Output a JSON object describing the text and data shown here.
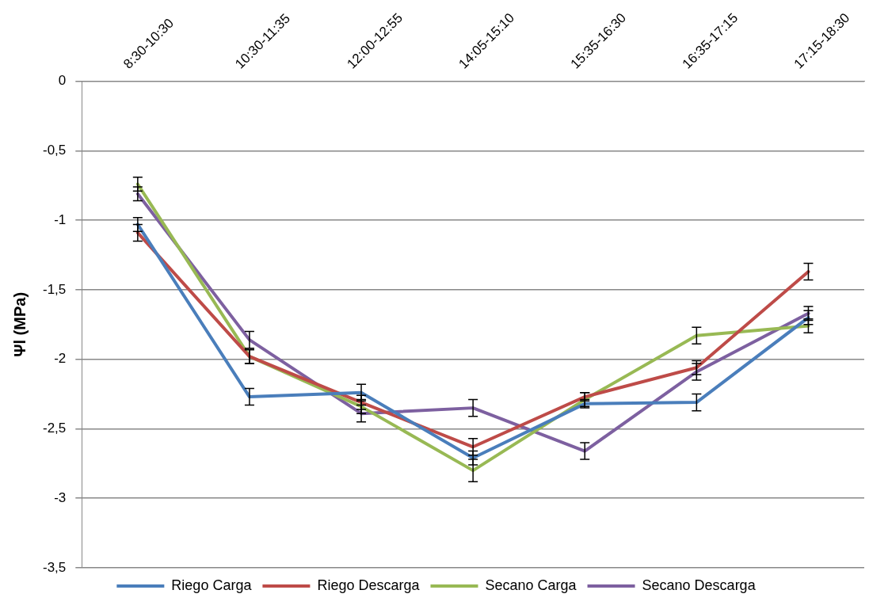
{
  "chart_data": {
    "type": "line",
    "ylabel": "Ψl (MPa)",
    "categories": [
      "8:30-10:30",
      "10:30-11:35",
      "12:00-12:55",
      "14:05-15:10",
      "15:35-16:30",
      "16:35-17:15",
      "17:15-18:30"
    ],
    "series": [
      {
        "name": "Riego Carga",
        "color": "#4a7ebb",
        "values": [
          -1.03,
          -2.27,
          -2.24,
          -2.71,
          -2.32,
          -2.31,
          -1.7
        ],
        "errors": [
          0.05,
          0.06,
          0.06,
          0.05,
          0.03,
          0.06,
          0.05
        ]
      },
      {
        "name": "Riego Descarga",
        "color": "#be4b48",
        "values": [
          -1.09,
          -1.98,
          -2.31,
          -2.63,
          -2.27,
          -2.06,
          -1.37
        ],
        "errors": [
          0.06,
          0.05,
          0.05,
          0.06,
          0.03,
          0.05,
          0.06
        ]
      },
      {
        "name": "Secano Carga",
        "color": "#98b954",
        "values": [
          -0.74,
          -1.98,
          -2.34,
          -2.8,
          -2.29,
          -1.83,
          -1.76
        ],
        "errors": [
          0.05,
          0.05,
          0.05,
          0.08,
          0.05,
          0.06,
          0.05
        ]
      },
      {
        "name": "Secano Descarga",
        "color": "#7d60a0",
        "values": [
          -0.81,
          -1.86,
          -2.39,
          -2.35,
          -2.66,
          -2.09,
          -1.67
        ],
        "errors": [
          0.05,
          0.06,
          0.06,
          0.06,
          0.06,
          0.06,
          0.05
        ]
      }
    ],
    "ylim": [
      -3.5,
      0
    ],
    "yticks": [
      0,
      {
        "value": -0.5,
        "label": "-0,5"
      },
      -1,
      {
        "value": -1.5,
        "label": "-1,5"
      },
      -2,
      {
        "value": -2.5,
        "label": "-2,5"
      },
      -3,
      {
        "value": -3.5,
        "label": "-3,5"
      }
    ],
    "grid": "y",
    "legend": "bottom",
    "line_style": "solid"
  }
}
